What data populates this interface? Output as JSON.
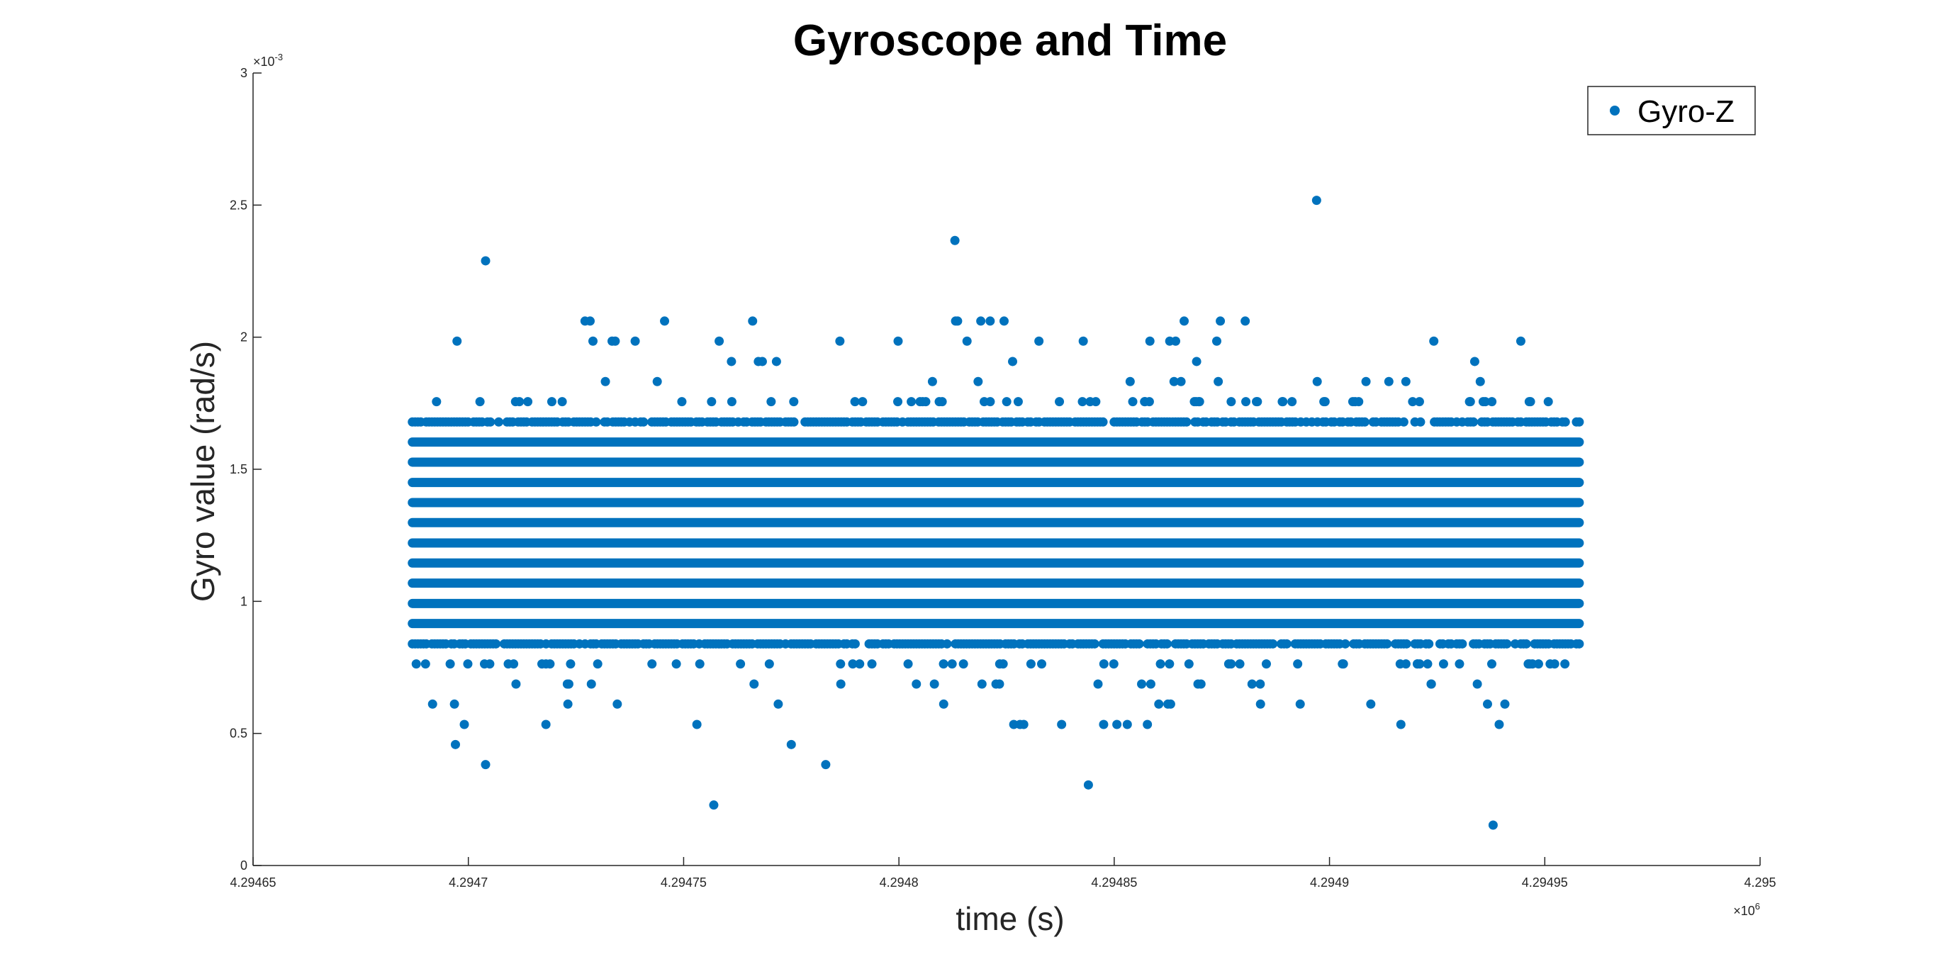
{
  "chart_data": {
    "type": "scatter",
    "title": "Gyroscope and Time",
    "xlabel": "time (s)",
    "ylabel": "Gyro value (rad/s)",
    "xlim": [
      4.29465,
      4.295
    ],
    "ylim": [
      0,
      0.003
    ],
    "x_multiplier": "×10",
    "x_exponent": "6",
    "y_multiplier": "×10",
    "y_exponent": "-3",
    "x_ticks": [
      4.29465,
      4.2947,
      4.29475,
      4.2948,
      4.29485,
      4.2949,
      4.29495,
      4.295
    ],
    "x_tick_labels": [
      "4.29465",
      "4.2947",
      "4.29475",
      "4.2948",
      "4.29485",
      "4.2949",
      "4.29495",
      "4.295"
    ],
    "y_ticks": [
      0,
      0.0005,
      0.001,
      0.0015,
      0.002,
      0.0025,
      0.003
    ],
    "y_tick_labels": [
      "0",
      "0.5",
      "1",
      "1.5",
      "2",
      "2.5",
      "3"
    ],
    "grid": false,
    "legend_position": "top-right",
    "series": [
      {
        "name": "Gyro-Z",
        "color": "#0072BD",
        "x_range": [
          4.294687,
          4.294958
        ],
        "quantization_step": 7.63e-05,
        "dense_levels": [
          0.000916,
          0.000992,
          0.001069,
          0.001145,
          0.001221,
          0.001298,
          0.001374,
          0.00145,
          0.001527,
          0.001603
        ],
        "medium_levels": [
          0.000839,
          0.001679
        ],
        "sparse_levels": [
          0.000534,
          0.000611,
          0.000687,
          0.000763,
          0.001756,
          0.001832,
          0.001908,
          0.001985,
          0.002061
        ],
        "outliers": [
          {
            "x": 4.294704,
            "y": 0.002289
          },
          {
            "x": 4.294704,
            "y": 0.000382
          },
          {
            "x": 4.294757,
            "y": 0.000229
          },
          {
            "x": 4.294813,
            "y": 0.002366
          },
          {
            "x": 4.294844,
            "y": 0.000305
          },
          {
            "x": 4.294897,
            "y": 0.002518
          },
          {
            "x": 4.294938,
            "y": 0.000153
          },
          {
            "x": 4.294783,
            "y": 0.000382
          },
          {
            "x": 4.294775,
            "y": 0.000458
          },
          {
            "x": 4.294697,
            "y": 0.000458
          }
        ]
      }
    ]
  }
}
